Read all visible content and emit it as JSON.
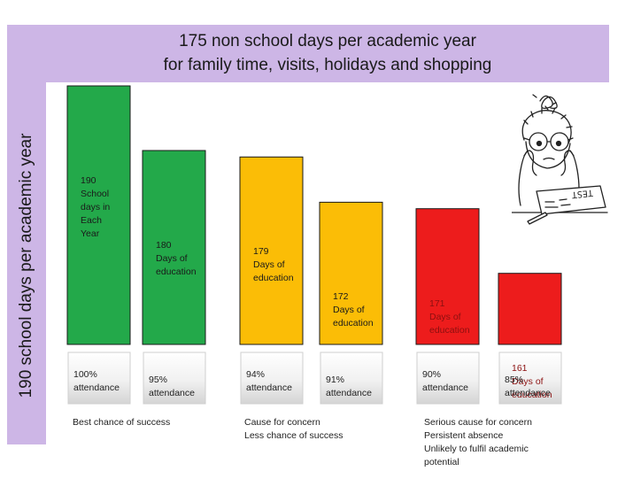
{
  "chart_data": {
    "type": "bar",
    "title": "175 non school days per academic  year",
    "subtitle": "for family time, visits, holidays and shopping",
    "ylabel": "190 school days per academic year",
    "xlabel": "",
    "ylim": [
      150,
      195
    ],
    "grid": false,
    "categories": [
      "100% attendance",
      "95% attendance",
      "94% attendance",
      "91% attendance",
      "90% attendance",
      "85% attendance"
    ],
    "values": [
      190,
      180,
      179,
      172,
      171,
      161
    ],
    "bars": [
      {
        "value": 190,
        "label": "190\nSchool\ndays in\nEach\nYear",
        "attendance": "100%\nattendance",
        "color": "#23a94a",
        "text_color": "#1a1a1a"
      },
      {
        "value": 180,
        "label": "180\nDays of\neducation",
        "attendance": "95%\nattendance",
        "color": "#23a94a",
        "text_color": "#1a1a1a"
      },
      {
        "value": 179,
        "label": "179\nDays of\neducation",
        "attendance": "94%\nattendance",
        "color": "#fbbd06",
        "text_color": "#1a1a1a"
      },
      {
        "value": 172,
        "label": "172\nDays of\neducation",
        "attendance": "91%\nattendance",
        "color": "#fbbd06",
        "text_color": "#1a1a1a"
      },
      {
        "value": 171,
        "label": "171\nDays of\neducation",
        "attendance": "90%\nattendance",
        "color": "#ed1c1c",
        "text_color": "#8b1010"
      },
      {
        "value": 161,
        "label": "161\nDays of\neducation",
        "attendance": "85%\nattendance",
        "color": "#ed1c1c",
        "text_color": "#8b1010"
      }
    ],
    "annotations": [
      "Best chance of success",
      "Cause for concern\nLess chance of success",
      "Serious cause for concern\nPersistent absence\nUnlikely to fulfil academic\npotential"
    ]
  },
  "cartoon": {
    "sign_text": "TEST"
  }
}
